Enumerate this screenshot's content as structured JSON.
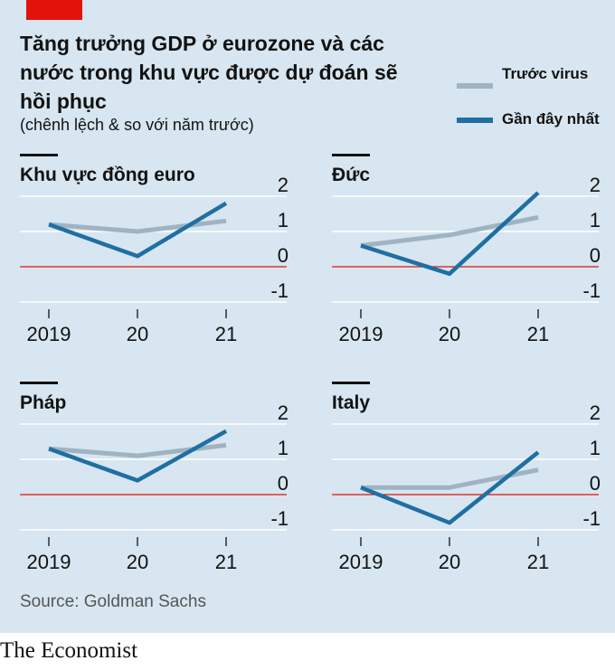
{
  "title": "Tăng trưởng GDP ở eurozone và các nước trong khu vực được dự đoán sẽ hồi phục",
  "subtitle": "(chênh lệch & so với năm trước)",
  "legend": [
    {
      "label": "Trước virus",
      "color": "#9fb3c3"
    },
    {
      "label": "Gần đây nhất",
      "color": "#1f6fa3"
    }
  ],
  "source": "Source: Goldman Sachs",
  "footer": "The Economist",
  "colors": {
    "background": "#d7e6f0",
    "grid": "#ffffff",
    "zero_line": "#e3120b",
    "brand": "#e3120b"
  },
  "chart_data": [
    {
      "type": "line",
      "title": "Khu vực đồng euro",
      "categories": [
        "2019",
        "20",
        "21"
      ],
      "series": [
        {
          "name": "Trước virus",
          "values": [
            1.2,
            1.0,
            1.3
          ]
        },
        {
          "name": "Gần đây nhất",
          "values": [
            1.2,
            0.3,
            1.8
          ]
        }
      ],
      "yticks": [
        "2",
        "1",
        "0",
        "-1"
      ],
      "ylim": [
        -1,
        2
      ]
    },
    {
      "type": "line",
      "title": "Đức",
      "categories": [
        "2019",
        "20",
        "21"
      ],
      "series": [
        {
          "name": "Trước virus",
          "values": [
            0.6,
            0.9,
            1.4
          ]
        },
        {
          "name": "Gần đây nhất",
          "values": [
            0.6,
            -0.2,
            2.1
          ]
        }
      ],
      "yticks": [
        "2",
        "1",
        "0",
        "-1"
      ],
      "ylim": [
        -1,
        2
      ]
    },
    {
      "type": "line",
      "title": "Pháp",
      "categories": [
        "2019",
        "20",
        "21"
      ],
      "series": [
        {
          "name": "Trước virus",
          "values": [
            1.3,
            1.1,
            1.4
          ]
        },
        {
          "name": "Gần đây nhất",
          "values": [
            1.3,
            0.4,
            1.8
          ]
        }
      ],
      "yticks": [
        "2",
        "1",
        "0",
        "-1"
      ],
      "ylim": [
        -1,
        2
      ]
    },
    {
      "type": "line",
      "title": "Italy",
      "categories": [
        "2019",
        "20",
        "21"
      ],
      "series": [
        {
          "name": "Trước virus",
          "values": [
            0.2,
            0.2,
            0.7
          ]
        },
        {
          "name": "Gần đây nhất",
          "values": [
            0.2,
            -0.8,
            1.2
          ]
        }
      ],
      "yticks": [
        "2",
        "1",
        "0",
        "-1"
      ],
      "ylim": [
        -1,
        2
      ]
    }
  ]
}
